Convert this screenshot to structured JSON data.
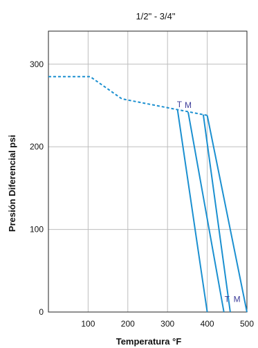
{
  "chart_data": {
    "type": "line",
    "title": "1/2\" - 3/4\"",
    "xlabel": "Temperatura  °F",
    "ylabel": "Presión Diferencial psi",
    "xlim": [
      0,
      500
    ],
    "ylim": [
      0,
      340
    ],
    "x_ticks": [
      100,
      200,
      300,
      400,
      500
    ],
    "y_ticks": [
      0,
      100,
      200,
      300
    ],
    "grid": true,
    "line_color": "#1a8fd0",
    "series": [
      {
        "style": "dashed",
        "points": [
          [
            0,
            285
          ],
          [
            105,
            285
          ],
          [
            185,
            258
          ],
          [
            400,
            238
          ]
        ]
      },
      {
        "style": "solid",
        "points": [
          [
            325,
            245
          ],
          [
            400,
            0
          ]
        ]
      },
      {
        "style": "solid",
        "points": [
          [
            352,
            242
          ],
          [
            442,
            0
          ]
        ]
      },
      {
        "style": "solid",
        "points": [
          [
            390,
            239
          ],
          [
            458,
            0
          ]
        ]
      },
      {
        "style": "solid",
        "points": [
          [
            400,
            238
          ],
          [
            500,
            0
          ]
        ]
      }
    ],
    "annotations": [
      {
        "text": "T",
        "x": 330,
        "y": 248,
        "color": "#3d3d99"
      },
      {
        "text": "M",
        "x": 352,
        "y": 247,
        "color": "#3d3d99"
      },
      {
        "text": "T",
        "x": 450,
        "y": 12,
        "color": "#3d3d99"
      },
      {
        "text": "M",
        "x": 475,
        "y": 12,
        "color": "#3d3d99"
      }
    ]
  }
}
